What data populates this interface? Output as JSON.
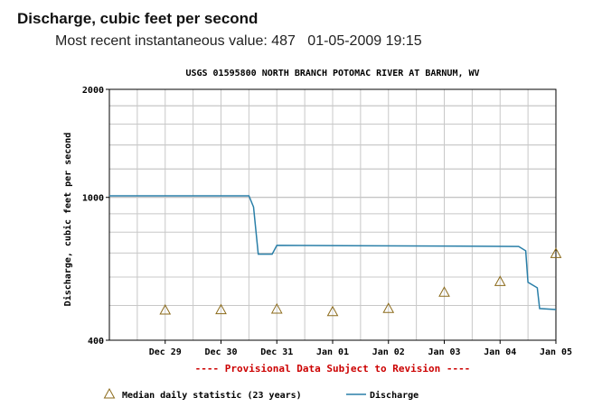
{
  "header": {
    "title": "Discharge, cubic feet per second",
    "recent_value_label": "Most recent instantaneous value: 487",
    "recent_datetime": "01-05-2009  19:15"
  },
  "chart_data": {
    "type": "line",
    "title": "USGS 01595800 NORTH BRANCH POTOMAC RIVER AT BARNUM, WV",
    "ylabel": "Discharge, cubic feet per second",
    "xlabel": "",
    "y_scale": "log",
    "ylim": [
      400,
      2000
    ],
    "y_ticks": [
      400,
      1000,
      2000
    ],
    "x_domain": [
      "2008-12-28T12:00",
      "2009-01-05T12:00"
    ],
    "x_ticks": [
      {
        "date": "2008-12-29",
        "label": "Dec 29"
      },
      {
        "date": "2008-12-30",
        "label": "Dec 30"
      },
      {
        "date": "2008-12-31",
        "label": "Dec 31"
      },
      {
        "date": "2009-01-01",
        "label": "Jan 01"
      },
      {
        "date": "2009-01-02",
        "label": "Jan 02"
      },
      {
        "date": "2009-01-03",
        "label": "Jan 03"
      },
      {
        "date": "2009-01-04",
        "label": "Jan 04"
      },
      {
        "date": "2009-01-05",
        "label": "Jan 05"
      }
    ],
    "grid": true,
    "provisional_note": "---- Provisional Data Subject to Revision ----",
    "legend_position": "bottom",
    "series": [
      {
        "name": "Discharge",
        "color": "#2a7fa8",
        "points": [
          [
            "2008-12-28T12:00",
            1010
          ],
          [
            "2008-12-31T00:00",
            1010
          ],
          [
            "2008-12-31T02:00",
            940
          ],
          [
            "2008-12-31T04:00",
            695
          ],
          [
            "2008-12-31T10:00",
            695
          ],
          [
            "2008-12-31T12:00",
            735
          ],
          [
            "2009-01-04T20:00",
            730
          ],
          [
            "2009-01-04T23:00",
            710
          ],
          [
            "2009-01-05T00:00",
            580
          ],
          [
            "2009-01-05T04:00",
            560
          ],
          [
            "2009-01-05T05:00",
            490
          ],
          [
            "2009-01-05T12:00",
            487
          ]
        ]
      },
      {
        "name": "Median daily statistic (23 years)",
        "color": "#8b6a1a",
        "marker": "triangle",
        "points": [
          [
            "2008-12-29",
            487
          ],
          [
            "2008-12-30",
            488
          ],
          [
            "2008-12-31",
            490
          ],
          [
            "2009-01-01",
            482
          ],
          [
            "2009-01-02",
            492
          ],
          [
            "2009-01-03",
            546
          ],
          [
            "2009-01-04",
            585
          ],
          [
            "2009-01-05",
            700
          ]
        ]
      }
    ]
  }
}
